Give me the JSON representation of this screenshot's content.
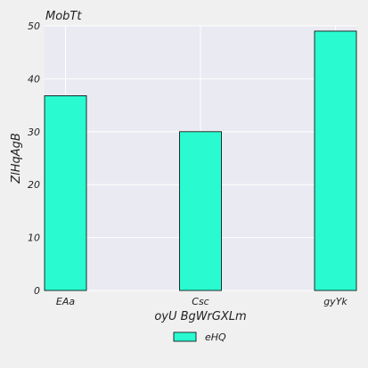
{
  "colors": {
    "figure_bg": "#f0f0f0",
    "plot_bg": "#eaeaf2",
    "grid": "#ffffff",
    "bar_fill": "#2afad0",
    "bar_edge": "#000000",
    "text": "#222222"
  },
  "chart_data": {
    "type": "bar",
    "title": "MobTt",
    "xlabel": "oyU BgWrGXLm",
    "ylabel": "ZlHqAgB",
    "categories": [
      "EAa",
      "Csc",
      "gyYk"
    ],
    "series": [
      {
        "name": "eHQ",
        "values": [
          36.8,
          30,
          49
        ]
      }
    ],
    "ylim": [
      0,
      50
    ],
    "yticks": [
      0,
      10,
      20,
      30,
      40,
      50
    ],
    "grid": true,
    "legend_position": "bottom-center"
  }
}
